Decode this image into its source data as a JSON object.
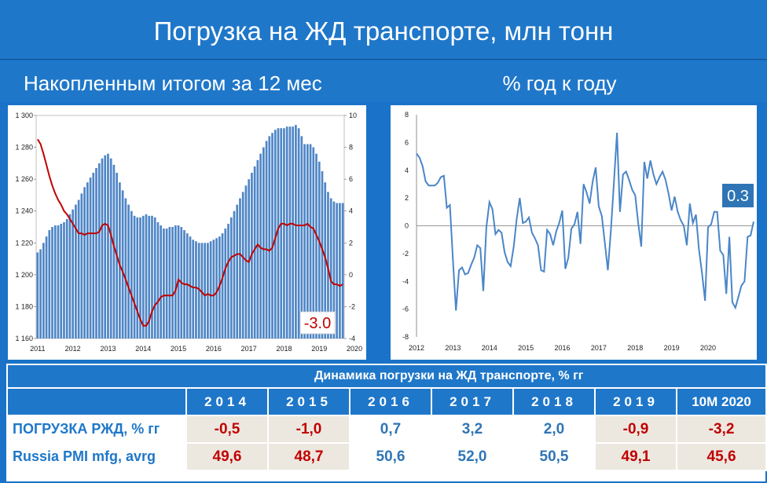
{
  "header": {
    "title": "Погрузка на ЖД транспорте, млн тонн",
    "left_subtitle": "Накопленным итогом за 12 мес",
    "right_subtitle": "% год к году"
  },
  "chart_data": [
    {
      "type": "bar",
      "title": "",
      "x_tick_labels": [
        "2011",
        "2012",
        "2013",
        "2014",
        "2015",
        "2016",
        "2017",
        "2018",
        "2019",
        "2020"
      ],
      "y_left_ticks": [
        "1 300",
        "1 280",
        "1 260",
        "1 240",
        "1 220",
        "1 200",
        "1 180",
        "1 160"
      ],
      "y_right_ticks": [
        "10",
        "8",
        "6",
        "4",
        "2",
        "0",
        "-2",
        "-4"
      ],
      "ylim_left": [
        1160,
        1300
      ],
      "ylim_right": [
        -4,
        10
      ],
      "series": [
        {
          "type": "bar",
          "axis": "left",
          "color": "#4f86c6",
          "values": [
            1214,
            1216,
            1220,
            1224,
            1228,
            1230,
            1231,
            1231,
            1232,
            1233,
            1235,
            1238,
            1241,
            1244,
            1247,
            1251,
            1255,
            1258,
            1261,
            1264,
            1267,
            1270,
            1273,
            1275,
            1276,
            1273,
            1269,
            1264,
            1258,
            1253,
            1248,
            1244,
            1240,
            1237,
            1236,
            1236,
            1237,
            1238,
            1237,
            1237,
            1236,
            1233,
            1231,
            1229,
            1229,
            1230,
            1230,
            1231,
            1231,
            1230,
            1228,
            1226,
            1224,
            1222,
            1221,
            1220,
            1220,
            1220,
            1220,
            1221,
            1222,
            1223,
            1224,
            1226,
            1229,
            1232,
            1236,
            1240,
            1244,
            1248,
            1252,
            1256,
            1260,
            1264,
            1268,
            1272,
            1276,
            1280,
            1284,
            1287,
            1289,
            1291,
            1292,
            1292,
            1292,
            1293,
            1293,
            1293,
            1294,
            1292,
            1287,
            1282,
            1282,
            1282,
            1280,
            1276,
            1271,
            1265,
            1258,
            1252,
            1248,
            1246,
            1245,
            1245,
            1245
          ]
        },
        {
          "type": "line",
          "axis": "right",
          "color": "#c00000",
          "values": [
            8.5,
            8.2,
            7.6,
            6.9,
            6.2,
            5.6,
            5.1,
            4.7,
            4.4,
            4.0,
            3.8,
            3.5,
            3.2,
            2.9,
            2.6,
            2.6,
            2.5,
            2.6,
            2.6,
            2.6,
            2.6,
            2.7,
            3.1,
            3.2,
            3.1,
            2.5,
            1.8,
            1.2,
            0.6,
            0.2,
            -0.3,
            -0.8,
            -1.3,
            -1.8,
            -2.3,
            -2.8,
            -3.2,
            -3.2,
            -2.9,
            -2.3,
            -1.9,
            -1.7,
            -1.4,
            -1.3,
            -1.3,
            -1.3,
            -1.3,
            -1.0,
            -0.3,
            -0.5,
            -0.6,
            -0.6,
            -0.7,
            -0.8,
            -0.8,
            -0.9,
            -1.1,
            -1.3,
            -1.2,
            -1.3,
            -1.3,
            -1.1,
            -0.7,
            -0.2,
            0.4,
            0.8,
            1.1,
            1.2,
            1.3,
            1.3,
            1.1,
            0.9,
            0.8,
            1.3,
            1.6,
            1.9,
            1.7,
            1.6,
            1.6,
            1.5,
            1.7,
            2.3,
            2.9,
            3.2,
            3.2,
            3.1,
            3.2,
            3.2,
            3.1,
            3.1,
            3.1,
            3.1,
            3.2,
            3.0,
            2.9,
            2.5,
            2.1,
            1.6,
            1.1,
            0.4,
            -0.4,
            -0.6,
            -0.6,
            -0.7,
            -0.6
          ]
        }
      ],
      "annotation": "-3.0"
    },
    {
      "type": "line",
      "title": "",
      "x_tick_labels": [
        "2012",
        "2013",
        "2014",
        "2015",
        "2016",
        "2017",
        "2018",
        "2019",
        "2020"
      ],
      "y_ticks": [
        "8",
        "6",
        "4",
        "2",
        "0",
        "-2",
        "-4",
        "-6",
        "-8"
      ],
      "ylim": [
        -8,
        8
      ],
      "series": [
        {
          "color": "#4a86c8",
          "values": [
            5.2,
            4.9,
            4.3,
            3.2,
            2.9,
            2.9,
            2.9,
            3.1,
            3.5,
            3.6,
            1.3,
            1.5,
            -2.5,
            -6.1,
            -3.2,
            -3.0,
            -3.5,
            -3.4,
            -2.8,
            -2.3,
            -1.4,
            -1.6,
            -4.7,
            -0.1,
            1.7,
            1.2,
            -0.6,
            -0.3,
            -0.5,
            -1.9,
            -2.6,
            -2.9,
            -1.5,
            0.5,
            2.0,
            0.2,
            0.3,
            0.6,
            -0.5,
            -0.9,
            -1.4,
            -3.2,
            -3.3,
            -0.3,
            -0.6,
            -1.4,
            -0.4,
            0.2,
            1.1,
            -3.1,
            -2.3,
            -0.2,
            0.1,
            1.0,
            -1.3,
            3.0,
            2.4,
            1.6,
            3.2,
            4.2,
            1.4,
            0.7,
            -1.2,
            -3.2,
            -0.3,
            3.1,
            6.7,
            1.0,
            3.7,
            3.9,
            3.3,
            2.6,
            2.2,
            0.2,
            -1.5,
            4.6,
            3.4,
            4.7,
            3.7,
            3.0,
            3.5,
            3.9,
            3.3,
            2.3,
            1.1,
            2.1,
            1.0,
            0.4,
            0.0,
            -1.4,
            1.6,
            0.2,
            0.8,
            -1.7,
            -3.4,
            -5.4,
            -0.1,
            0.1,
            1.0,
            1.0,
            -1.8,
            -2.1,
            -4.9,
            -0.8,
            -5.5,
            -5.9,
            -5.1,
            -4.3,
            -4.0,
            -0.8,
            -0.7,
            0.3
          ]
        }
      ],
      "annotation": "0.3"
    }
  ],
  "table": {
    "caption": "Динамика погрузки на ЖД транспорте, % гг",
    "years": [
      "2014",
      "2015",
      "2016",
      "2017",
      "2018",
      "2019",
      "10M 2020"
    ],
    "rows": [
      {
        "label": "ПОГРУЗКА РЖД, % гг",
        "values": [
          "-0,5",
          "-1,0",
          "0,7",
          "3,2",
          "2,0",
          "-0,9",
          "-3,2"
        ],
        "neg": [
          true,
          true,
          false,
          false,
          false,
          true,
          true
        ]
      },
      {
        "label": "Russia PMI mfg, avrg",
        "values": [
          "49,6",
          "48,7",
          "50,6",
          "52,0",
          "50,5",
          "49,1",
          "45,6"
        ],
        "neg": [
          true,
          true,
          false,
          false,
          false,
          true,
          true
        ]
      }
    ]
  },
  "colors": {
    "header_blue": "#1f77c9",
    "negative_red": "#c00000",
    "positive_blue": "#2f75b5",
    "neutral_bg": "#ece8e0"
  }
}
